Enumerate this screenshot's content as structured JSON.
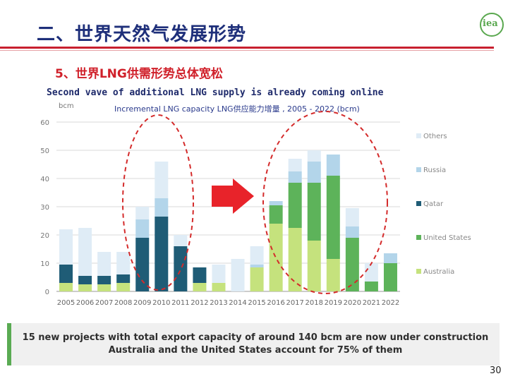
{
  "slide": {
    "title": "二、世界天然气发展形势",
    "subtitle": "5、世界LNG供需形势总体宽松",
    "eng_title": "Second vave of additional LNG supply is already coming online",
    "page_number": "30",
    "logo_text": "iea",
    "footer_line1": "15 new projects with total export capacity of around 140 bcm are now under construction",
    "footer_line2": "Australia and the United States account for 75% of them"
  },
  "chart_data": {
    "type": "bar",
    "stacked": true,
    "title": "Incremental LNG capacity LNG供应能力增量 , 2005 - 2022 (bcm)",
    "ylabel": "bcm",
    "xlabel": "",
    "ylim": [
      0,
      60
    ],
    "yticks": [
      "0",
      "10",
      "20",
      "30",
      "40",
      "50",
      "60"
    ],
    "grid": true,
    "legend_position": "right",
    "categories": [
      "2005",
      "2006",
      "2007",
      "2008",
      "2009",
      "2010",
      "2011",
      "2012",
      "2013",
      "2014",
      "2015",
      "2016",
      "2017",
      "2018",
      "2019",
      "2020",
      "2021",
      "2022"
    ],
    "series": [
      {
        "name": "Australia",
        "color": "#c5e27d",
        "values": [
          3,
          2.5,
          2.5,
          3,
          0,
          0,
          0,
          3,
          3,
          0,
          8.5,
          24,
          22.5,
          18,
          11.5,
          0,
          0,
          0
        ]
      },
      {
        "name": "United States",
        "color": "#5db35a",
        "values": [
          0,
          0,
          0,
          0,
          0,
          0,
          0,
          0,
          0,
          0,
          0,
          6.5,
          16,
          20.5,
          29.5,
          19,
          3.5,
          10
        ]
      },
      {
        "name": "Qatar",
        "color": "#1f5c76",
        "values": [
          6.5,
          3,
          3,
          3,
          19,
          26.5,
          16,
          5.5,
          0,
          0,
          0,
          0,
          0,
          0,
          0,
          0,
          0,
          0
        ]
      },
      {
        "name": "Russia",
        "color": "#b3d5ea",
        "values": [
          0,
          0,
          0,
          0,
          6.5,
          6.5,
          0,
          0,
          0,
          0,
          1,
          1.5,
          4,
          7.5,
          7.5,
          4,
          0,
          3.5
        ]
      },
      {
        "name": "Others",
        "color": "#dfecf6",
        "values": [
          12.5,
          17,
          8.5,
          8,
          4.5,
          13,
          4,
          0,
          6.5,
          11.5,
          6.5,
          0,
          4.5,
          4,
          0,
          6.5,
          6.5,
          0
        ]
      }
    ]
  },
  "annotations": {
    "arrow_color": "#e8232a",
    "ellipse_color": "#d42b2b"
  }
}
